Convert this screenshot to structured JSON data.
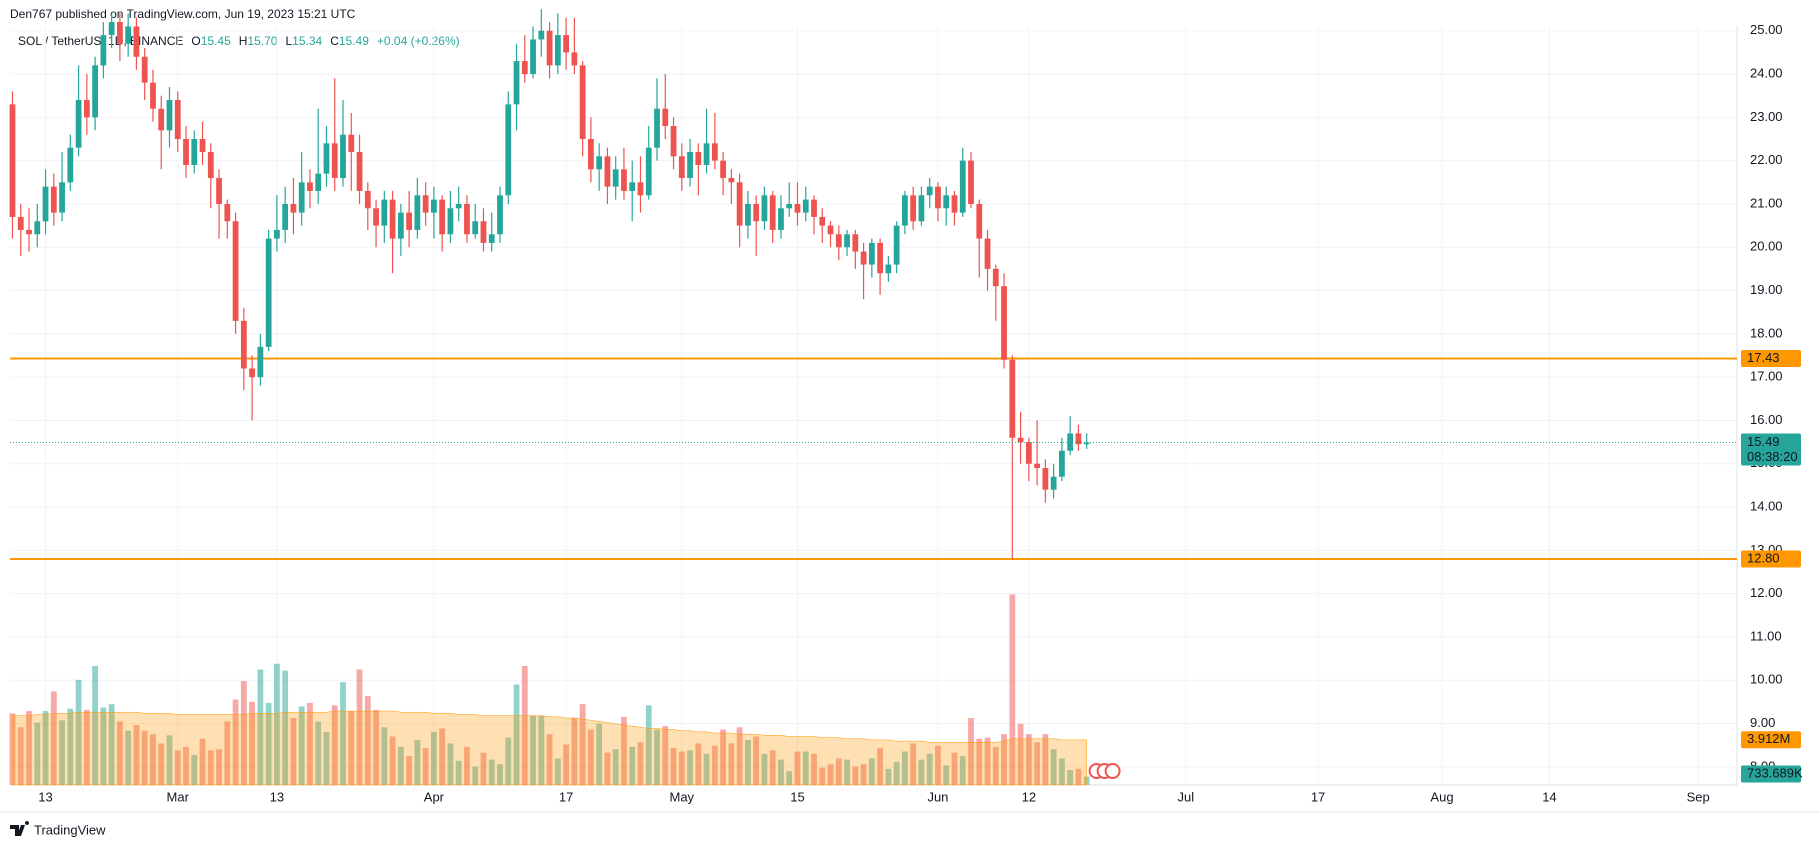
{
  "header": {
    "published": "Den767 published on TradingView.com, Jun 19, 2023 15:21 UTC",
    "brand": "TradingView"
  },
  "chart_data": {
    "type": "candlestick",
    "title": "SOL / TetherUS, 1D, BINANCE",
    "legend": {
      "items": [
        {
          "key": "O",
          "value": "15.45"
        },
        {
          "key": "H",
          "value": "15.70"
        },
        {
          "key": "L",
          "value": "15.34"
        },
        {
          "key": "C",
          "value": "15.49"
        }
      ],
      "change": "+0.04 (+0.26%)"
    },
    "up_color": "#26a69a",
    "down_color": "#ef5350",
    "volume_up_color": "rgba(38,166,154,0.5)",
    "volume_down_color": "rgba(239,83,80,0.5)",
    "ma_color": "#ff9800",
    "ma_fill": "rgba(255,152,0,0.3)",
    "hline_color": "#ff9800",
    "grid": true,
    "xlim": [
      -0.3,
      208.7
    ],
    "xticks": [
      {
        "value": 4,
        "label": "13"
      },
      {
        "value": 20,
        "label": "Mar"
      },
      {
        "value": 32,
        "label": "13"
      },
      {
        "value": 51,
        "label": "Apr"
      },
      {
        "value": 67,
        "label": "17"
      },
      {
        "value": 81,
        "label": "May"
      },
      {
        "value": 95,
        "label": "15"
      },
      {
        "value": 112,
        "label": "Jun"
      },
      {
        "value": 123,
        "label": "12"
      },
      {
        "value": 142,
        "label": "Jul"
      },
      {
        "value": 158,
        "label": "17"
      },
      {
        "value": 173,
        "label": "Aug"
      },
      {
        "value": 186,
        "label": "14"
      },
      {
        "value": 204,
        "label": "Sep"
      }
    ],
    "ylim": [
      7.58,
      25.11
    ],
    "yticks": [
      {
        "value": 8,
        "label": "8.00"
      },
      {
        "value": 9,
        "label": "9.00"
      },
      {
        "value": 10,
        "label": "10.00"
      },
      {
        "value": 11,
        "label": "11.00"
      },
      {
        "value": 12,
        "label": "12.00"
      },
      {
        "value": 13,
        "label": "13.00"
      },
      {
        "value": 14,
        "label": "14.00"
      },
      {
        "value": 15,
        "label": "15.00"
      },
      {
        "value": 16,
        "label": "16.00"
      },
      {
        "value": 17,
        "label": "17.00"
      },
      {
        "value": 18,
        "label": "18.00"
      },
      {
        "value": 19,
        "label": "19.00"
      },
      {
        "value": 20,
        "label": "20.00"
      },
      {
        "value": 21,
        "label": "21.00"
      },
      {
        "value": 22,
        "label": "22.00"
      },
      {
        "value": 23,
        "label": "23.00"
      },
      {
        "value": 24,
        "label": "24.00"
      },
      {
        "value": 25,
        "label": "25.00"
      }
    ],
    "y2lim": [
      0,
      65.7
    ],
    "hlines": [
      {
        "value": 17.43
      },
      {
        "value": 12.8,
        "label": "12.80"
      }
    ],
    "last_price": {
      "value": 15.49,
      "countdown": "08:38:20"
    },
    "open": [
      23.3,
      20.7,
      20.4,
      20.3,
      20.6,
      21.4,
      20.8,
      21.5,
      22.3,
      23.4,
      23.0,
      24.2,
      24.9,
      25.2,
      24.7,
      25.1,
      24.4,
      23.8,
      23.2,
      22.7,
      23.4,
      22.5,
      21.9,
      22.5,
      22.2,
      21.6,
      21.0,
      20.6,
      18.3,
      17.2,
      17.0,
      17.7,
      20.2,
      20.4,
      21.0,
      20.8,
      21.5,
      21.3,
      21.7,
      22.4,
      21.6,
      22.6,
      22.2,
      21.3,
      20.9,
      20.5,
      21.1,
      20.2,
      20.8,
      20.4,
      21.2,
      20.8,
      21.1,
      20.3,
      20.9,
      21.0,
      20.3,
      20.6,
      20.1,
      20.3,
      21.2,
      23.3,
      24.3,
      24.0,
      24.8,
      25.0,
      24.2,
      24.9,
      24.5,
      24.2,
      22.5,
      21.8,
      22.1,
      21.4,
      21.8,
      21.3,
      21.5,
      21.2,
      22.3,
      23.2,
      22.8,
      22.1,
      21.6,
      22.2,
      21.9,
      22.4,
      22.0,
      21.6,
      21.5,
      20.5,
      21.0,
      20.6,
      21.2,
      20.4,
      20.9,
      21.0,
      20.8,
      21.1,
      20.7,
      20.5,
      20.3,
      20.0,
      20.3,
      19.9,
      19.6,
      20.1,
      19.4,
      19.6,
      20.5,
      21.2,
      20.6,
      21.2,
      21.4,
      20.9,
      21.2,
      20.8,
      22.0,
      21.0,
      20.2,
      19.5,
      19.1,
      17.4,
      15.6,
      15.5,
      15.0,
      14.9,
      14.4,
      14.7,
      15.3,
      15.7,
      15.45
    ],
    "high": [
      23.6,
      21.0,
      20.9,
      21.0,
      21.8,
      21.7,
      22.2,
      22.6,
      24.2,
      24.0,
      24.4,
      25.2,
      25.4,
      25.4,
      25.4,
      25.3,
      24.6,
      24.1,
      23.5,
      23.7,
      23.6,
      22.8,
      22.7,
      22.9,
      22.4,
      21.8,
      21.1,
      20.8,
      18.6,
      17.5,
      18.0,
      20.4,
      21.2,
      21.4,
      21.6,
      22.2,
      21.8,
      23.2,
      22.8,
      23.9,
      23.4,
      23.1,
      22.6,
      21.5,
      21.1,
      21.3,
      21.3,
      21.0,
      21.3,
      21.6,
      21.5,
      21.4,
      21.2,
      21.3,
      21.4,
      21.2,
      21.0,
      20.9,
      20.8,
      21.4,
      23.6,
      24.7,
      24.9,
      25.1,
      25.5,
      25.2,
      25.4,
      25.3,
      25.3,
      24.3,
      23.0,
      22.4,
      22.3,
      22.1,
      22.3,
      22.0,
      22.1,
      22.8,
      23.9,
      24.0,
      23.0,
      22.4,
      22.5,
      22.4,
      23.2,
      23.1,
      22.2,
      21.8,
      21.7,
      21.3,
      21.2,
      21.4,
      21.3,
      21.2,
      21.5,
      21.5,
      21.4,
      21.2,
      20.9,
      20.6,
      20.5,
      20.4,
      20.4,
      20.1,
      20.2,
      20.2,
      19.8,
      20.6,
      21.3,
      21.4,
      21.4,
      21.6,
      21.5,
      21.4,
      21.3,
      22.3,
      22.2,
      21.1,
      20.4,
      19.6,
      19.4,
      17.5,
      16.2,
      15.6,
      16.0,
      15.1,
      15.0,
      15.6,
      16.1,
      15.9,
      15.7
    ],
    "low": [
      20.2,
      19.8,
      19.9,
      20.0,
      20.3,
      20.5,
      20.6,
      21.3,
      22.1,
      22.6,
      22.7,
      23.9,
      24.6,
      24.3,
      24.4,
      24.1,
      23.4,
      22.9,
      21.8,
      22.3,
      22.2,
      21.6,
      21.7,
      21.9,
      20.9,
      20.2,
      20.2,
      18.0,
      16.7,
      16.0,
      16.8,
      17.6,
      19.9,
      20.1,
      20.3,
      20.5,
      20.9,
      21.0,
      21.4,
      21.3,
      21.4,
      21.3,
      21.0,
      20.4,
      20.0,
      20.1,
      19.4,
      19.8,
      20.0,
      20.2,
      20.5,
      20.2,
      19.9,
      20.1,
      20.6,
      20.1,
      20.2,
      19.9,
      19.9,
      20.1,
      21.0,
      22.7,
      23.8,
      23.9,
      24.4,
      23.9,
      24.0,
      24.1,
      24.0,
      22.1,
      21.5,
      21.3,
      21.0,
      21.1,
      21.1,
      20.6,
      20.8,
      21.1,
      22.0,
      22.5,
      21.8,
      21.3,
      21.4,
      21.2,
      21.7,
      21.8,
      21.2,
      21.0,
      20.0,
      20.2,
      19.8,
      20.4,
      20.1,
      20.2,
      20.7,
      20.5,
      20.6,
      20.3,
      20.1,
      20.0,
      19.7,
      19.8,
      19.5,
      18.8,
      19.3,
      18.9,
      19.2,
      19.4,
      20.3,
      20.4,
      20.5,
      20.9,
      20.6,
      20.5,
      20.5,
      20.7,
      20.9,
      19.3,
      19.0,
      18.3,
      17.2,
      12.8,
      15.0,
      14.6,
      14.5,
      14.1,
      14.2,
      14.6,
      15.2,
      15.3,
      15.34
    ],
    "close": [
      20.7,
      20.4,
      20.3,
      20.6,
      21.4,
      20.8,
      21.5,
      22.3,
      23.4,
      23.0,
      24.2,
      24.9,
      25.2,
      24.7,
      25.1,
      24.4,
      23.8,
      23.2,
      22.7,
      23.4,
      22.5,
      21.9,
      22.5,
      22.2,
      21.6,
      21.0,
      20.6,
      18.3,
      17.2,
      17.0,
      17.7,
      20.2,
      20.4,
      21.0,
      20.8,
      21.5,
      21.3,
      21.7,
      22.4,
      21.6,
      22.6,
      22.2,
      21.3,
      20.9,
      20.5,
      21.1,
      20.2,
      20.8,
      20.4,
      21.2,
      20.8,
      21.1,
      20.3,
      20.9,
      21.0,
      20.3,
      20.6,
      20.1,
      20.3,
      21.2,
      23.3,
      24.3,
      24.0,
      24.8,
      25.0,
      24.2,
      24.9,
      24.5,
      24.2,
      22.5,
      21.8,
      22.1,
      21.4,
      21.8,
      21.3,
      21.5,
      21.2,
      22.3,
      23.2,
      22.8,
      22.1,
      21.6,
      22.2,
      21.9,
      22.4,
      22.0,
      21.6,
      21.5,
      20.5,
      21.0,
      20.6,
      21.2,
      20.4,
      20.9,
      21.0,
      20.8,
      21.1,
      20.7,
      20.5,
      20.3,
      20.0,
      20.3,
      19.9,
      19.6,
      20.1,
      19.4,
      19.6,
      20.5,
      21.2,
      20.6,
      21.2,
      21.4,
      20.9,
      21.2,
      20.8,
      22.0,
      21.0,
      20.2,
      19.5,
      19.1,
      17.4,
      15.6,
      15.5,
      15.0,
      14.9,
      14.4,
      14.7,
      15.3,
      15.7,
      15.45,
      15.49
    ],
    "volume": [
      6.2,
      5.0,
      6.4,
      5.4,
      6.4,
      8.1,
      5.6,
      6.6,
      9.1,
      6.5,
      10.3,
      6.7,
      7.0,
      5.5,
      4.7,
      5.2,
      4.7,
      4.4,
      3.6,
      4.3,
      3.0,
      3.3,
      2.6,
      4.0,
      3.0,
      3.1,
      5.5,
      7.4,
      9.0,
      7.2,
      10.0,
      7.1,
      10.5,
      9.9,
      5.8,
      6.8,
      7.1,
      5.5,
      4.6,
      6.9,
      8.9,
      6.4,
      10.0,
      7.7,
      6.5,
      5.0,
      4.2,
      3.3,
      2.5,
      3.9,
      3.2,
      4.6,
      4.9,
      3.6,
      2.1,
      3.3,
      1.6,
      2.8,
      2.2,
      1.8,
      4.1,
      8.7,
      10.3,
      6.0,
      6.0,
      4.4,
      2.3,
      3.5,
      5.8,
      7.0,
      4.8,
      5.3,
      2.8,
      3.1,
      5.9,
      3.3,
      3.7,
      6.9,
      4.8,
      5.1,
      3.2,
      2.9,
      3.0,
      3.6,
      2.7,
      3.4,
      4.8,
      3.6,
      5.0,
      3.9,
      4.2,
      2.7,
      3.0,
      2.2,
      1.2,
      2.9,
      2.9,
      2.7,
      1.5,
      1.8,
      2.3,
      2.2,
      1.6,
      1.8,
      2.3,
      3.2,
      1.4,
      2.0,
      2.9,
      3.6,
      2.2,
      2.7,
      3.4,
      1.7,
      2.8,
      2.5,
      5.8,
      4.0,
      4.1,
      3.3,
      4.4,
      16.5,
      5.3,
      4.4,
      3.7,
      4.4,
      3.1,
      2.3,
      1.3,
      1.4,
      0.733689
    ],
    "volume_label": "733.689K",
    "volume_ma": [
      6.0,
      6.0,
      6.0,
      6.1,
      6.1,
      6.2,
      6.2,
      6.2,
      6.3,
      6.3,
      6.3,
      6.3,
      6.3,
      6.3,
      6.3,
      6.3,
      6.2,
      6.2,
      6.2,
      6.2,
      6.1,
      6.1,
      6.1,
      6.1,
      6.1,
      6.1,
      6.1,
      6.1,
      6.1,
      6.2,
      6.2,
      6.2,
      6.2,
      6.3,
      6.3,
      6.3,
      6.3,
      6.3,
      6.3,
      6.4,
      6.4,
      6.4,
      6.4,
      6.4,
      6.4,
      6.4,
      6.4,
      6.3,
      6.3,
      6.3,
      6.3,
      6.2,
      6.2,
      6.2,
      6.1,
      6.1,
      6.1,
      6.0,
      6.0,
      6.0,
      6.0,
      6.0,
      6.0,
      6.0,
      6.0,
      5.9,
      5.9,
      5.8,
      5.8,
      5.7,
      5.6,
      5.5,
      5.4,
      5.3,
      5.2,
      5.1,
      5.0,
      4.9,
      4.9,
      4.8,
      4.8,
      4.7,
      4.7,
      4.6,
      4.6,
      4.5,
      4.5,
      4.5,
      4.4,
      4.4,
      4.4,
      4.3,
      4.3,
      4.3,
      4.2,
      4.2,
      4.2,
      4.2,
      4.1,
      4.1,
      4.1,
      4.0,
      4.0,
      4.0,
      3.9,
      3.9,
      3.9,
      3.8,
      3.8,
      3.8,
      3.8,
      3.7,
      3.7,
      3.7,
      3.7,
      3.7,
      3.7,
      3.7,
      3.7,
      3.7,
      3.8,
      4.0,
      4.0,
      4.0,
      4.0,
      4.0,
      4.0,
      3.9,
      3.9,
      3.9,
      3.912
    ],
    "volume_ma_label": "3.912M"
  }
}
